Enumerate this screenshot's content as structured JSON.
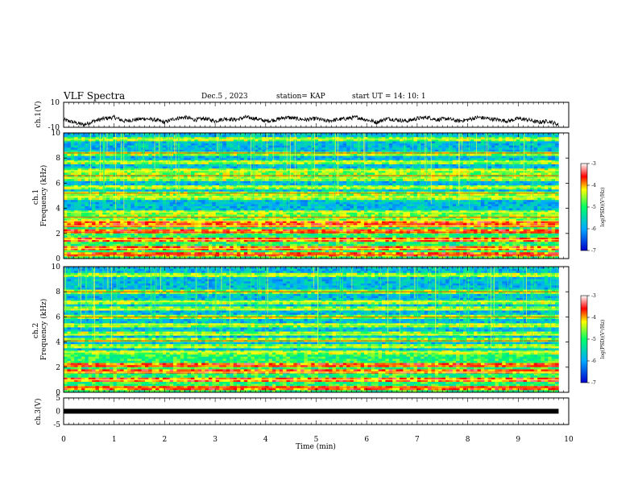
{
  "header": {
    "title": "VLF Spectra",
    "date": "Dec.5  , 2023",
    "station": "station= KAP",
    "start_ut": "start  UT =   14: 10: 1"
  },
  "chart_data": [
    {
      "type": "line",
      "title": "",
      "ylabel": "ch.1(V)",
      "xlabel": "",
      "xlim": [
        0,
        10
      ],
      "ylim": [
        -10,
        10
      ],
      "yticks": [
        "10",
        "-10"
      ],
      "series": [
        {
          "x": [
            0.0,
            0.2,
            0.4,
            0.6,
            0.8,
            1.0,
            1.2,
            1.4,
            1.6,
            1.8,
            2.0,
            2.2,
            2.4,
            2.6,
            2.8,
            3.0,
            3.2,
            3.4,
            3.6,
            3.8,
            4.0,
            4.2,
            4.4,
            4.6,
            4.8,
            5.0,
            5.2,
            5.4,
            5.6,
            5.8,
            6.0,
            6.2,
            6.4,
            6.6,
            6.8,
            7.0,
            7.2,
            7.4,
            7.6,
            7.8,
            8.0,
            8.2,
            8.4,
            8.6,
            8.8,
            9.0,
            9.2,
            9.4,
            9.6,
            9.8
          ],
          "values": [
            -4,
            -6,
            -8,
            -5,
            -3,
            -2,
            -5,
            -4,
            -3,
            -4,
            -6,
            -3,
            -2,
            -4,
            -3,
            -5,
            -3,
            -4,
            -2,
            -3,
            -5,
            -4,
            -2,
            -3,
            -4,
            -3,
            -5,
            -4,
            -3,
            -2,
            -4,
            -6,
            -3,
            -4,
            -5,
            -3,
            -2,
            -4,
            -3,
            -5,
            -4,
            -2,
            -3,
            -4,
            -5,
            -3,
            -4,
            -6,
            -5,
            -8
          ],
          "color": "#000000"
        }
      ]
    },
    {
      "type": "heatmap",
      "title": "",
      "ylabel": "ch.1\nFrequency (kHz)",
      "xlim": [
        0,
        10
      ],
      "ylim": [
        0,
        10
      ],
      "yticks": [
        "0",
        "2",
        "4",
        "6",
        "8",
        "10"
      ],
      "data_extent_min": 9.8,
      "colorbar": {
        "label": "log(PSD)(V²/Hz)",
        "range": [
          -7,
          -3
        ],
        "ticks": [
          "-3",
          "-4",
          "-5",
          "-6",
          "-7"
        ],
        "colors": [
          "#0000cc",
          "#00aaff",
          "#00ff66",
          "#ffff00",
          "#ff0000",
          "#ffffff"
        ]
      },
      "bands_khz": [
        0.3,
        0.8,
        1.5,
        2.1,
        2.6,
        3.0,
        3.3,
        3.7,
        4.9,
        5.2,
        5.7,
        6.4,
        6.6,
        7.0,
        7.7,
        8.4,
        9.5
      ]
    },
    {
      "type": "heatmap",
      "title": "",
      "ylabel": "ch.2\nFrequency (kHz)",
      "xlim": [
        0,
        10
      ],
      "ylim": [
        0,
        10
      ],
      "yticks": [
        "0",
        "2",
        "4",
        "6",
        "8",
        "10"
      ],
      "data_extent_min": 9.8,
      "colorbar": {
        "label": "log(PSD)(V²/Hz)",
        "range": [
          -7,
          -3
        ],
        "ticks": [
          "-3",
          "-4",
          "-5",
          "-6",
          "-7"
        ],
        "colors": [
          "#0000cc",
          "#00aaff",
          "#00ff66",
          "#ffff00",
          "#ff0000",
          "#ffffff"
        ]
      },
      "bands_khz": [
        0.4,
        1.0,
        1.6,
        2.1,
        3.2,
        3.6,
        4.1,
        4.6,
        5.4,
        6.0,
        6.6,
        7.2,
        8.0,
        9.3
      ]
    },
    {
      "type": "line",
      "title": "",
      "ylabel": "ch.3(V)",
      "xlabel": "Time  (min)",
      "xlim": [
        0,
        10
      ],
      "ylim": [
        -5,
        5
      ],
      "yticks": [
        "5",
        "0",
        "-5"
      ],
      "xticks": [
        "0",
        "1",
        "2",
        "3",
        "4",
        "5",
        "6",
        "7",
        "8",
        "9",
        "10"
      ],
      "series": [
        {
          "x": [
            0,
            9.8
          ],
          "values": [
            0,
            0
          ],
          "color": "#000000"
        }
      ]
    }
  ]
}
